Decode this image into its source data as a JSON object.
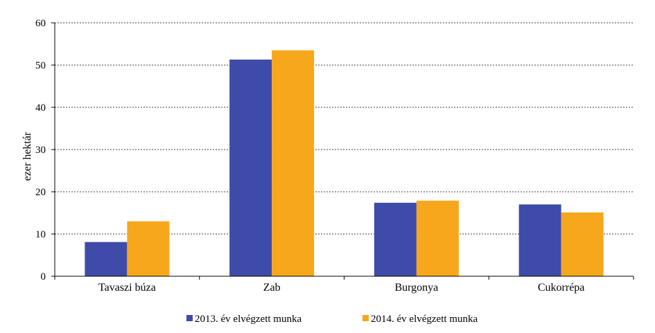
{
  "chart_data": {
    "type": "bar",
    "ylabel": "ezer hektár",
    "ylim": [
      0,
      60
    ],
    "yticks": [
      "0",
      "10",
      "20",
      "30",
      "40",
      "50",
      "60"
    ],
    "categories": [
      "Tavaszi búza",
      "Zab",
      "Burgonya",
      "Cukorrépa"
    ],
    "series": [
      {
        "name": "2013. év elvégzett munka",
        "color": "#3f4ba8",
        "values": [
          8.1,
          51.3,
          17.4,
          17.0
        ]
      },
      {
        "name": "2014. év elvégzett munka",
        "color": "#f7a71c",
        "values": [
          13.0,
          53.5,
          17.9,
          15.1
        ]
      }
    ],
    "grid": true,
    "grid_style": "dashed",
    "legend_position": "bottom"
  }
}
